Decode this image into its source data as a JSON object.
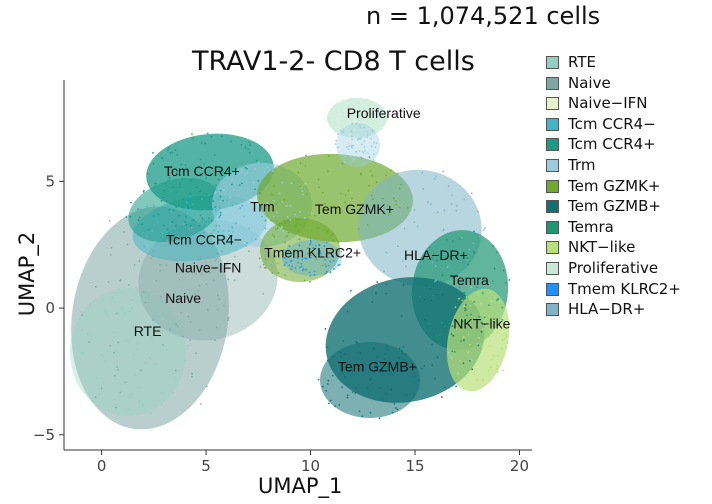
{
  "header": {
    "count_note": "n = 1,074,521 cells"
  },
  "chart_data": {
    "type": "scatter",
    "title": "TRAV1-2- CD8 T cells",
    "xlabel": "UMAP_1",
    "ylabel": "UMAP_2",
    "xlim": [
      -1.8,
      20.6
    ],
    "ylim": [
      -5.6,
      9.0
    ],
    "x_ticks": [
      0,
      5,
      10,
      15,
      20
    ],
    "y_ticks": [
      -5,
      0,
      5
    ],
    "legend_position": "right",
    "grid": false,
    "clusters": [
      {
        "name": "RTE",
        "color": "#8FD1BE",
        "center": [
          2.2,
          -0.9
        ]
      },
      {
        "name": "Naive",
        "color": "#7FA8A5",
        "center": [
          3.9,
          0.4
        ]
      },
      {
        "name": "Naive−IFN",
        "color": "#E5F3C6",
        "center": [
          5.1,
          1.6
        ]
      },
      {
        "name": "Tcm CCR4−",
        "color": "#3FB6C4",
        "center": [
          4.9,
          2.7
        ]
      },
      {
        "name": "Tcm CCR4+",
        "color": "#1A9A87",
        "center": [
          4.8,
          5.4
        ]
      },
      {
        "name": "Trm",
        "color": "#9BCDE0",
        "center": [
          7.7,
          4.0
        ]
      },
      {
        "name": "Tem GZMK+",
        "color": "#6DAA2E",
        "center": [
          12.1,
          3.9
        ]
      },
      {
        "name": "Tem GZMB+",
        "color": "#137072",
        "center": [
          13.2,
          -2.3
        ]
      },
      {
        "name": "Temra",
        "color": "#1E9674",
        "center": [
          17.6,
          1.1
        ]
      },
      {
        "name": "NKT−like",
        "color": "#B8E07A",
        "center": [
          18.2,
          -0.6
        ]
      },
      {
        "name": "Proliferative",
        "color": "#C9EAD8",
        "center": [
          13.5,
          7.7
        ]
      },
      {
        "name": "Tmem KLRC2+",
        "color": "#1E90FF",
        "center": [
          10.1,
          2.2
        ]
      },
      {
        "name": "HLA−DR+",
        "color": "#7DB4C7",
        "center": [
          16.0,
          2.1
        ]
      }
    ]
  }
}
